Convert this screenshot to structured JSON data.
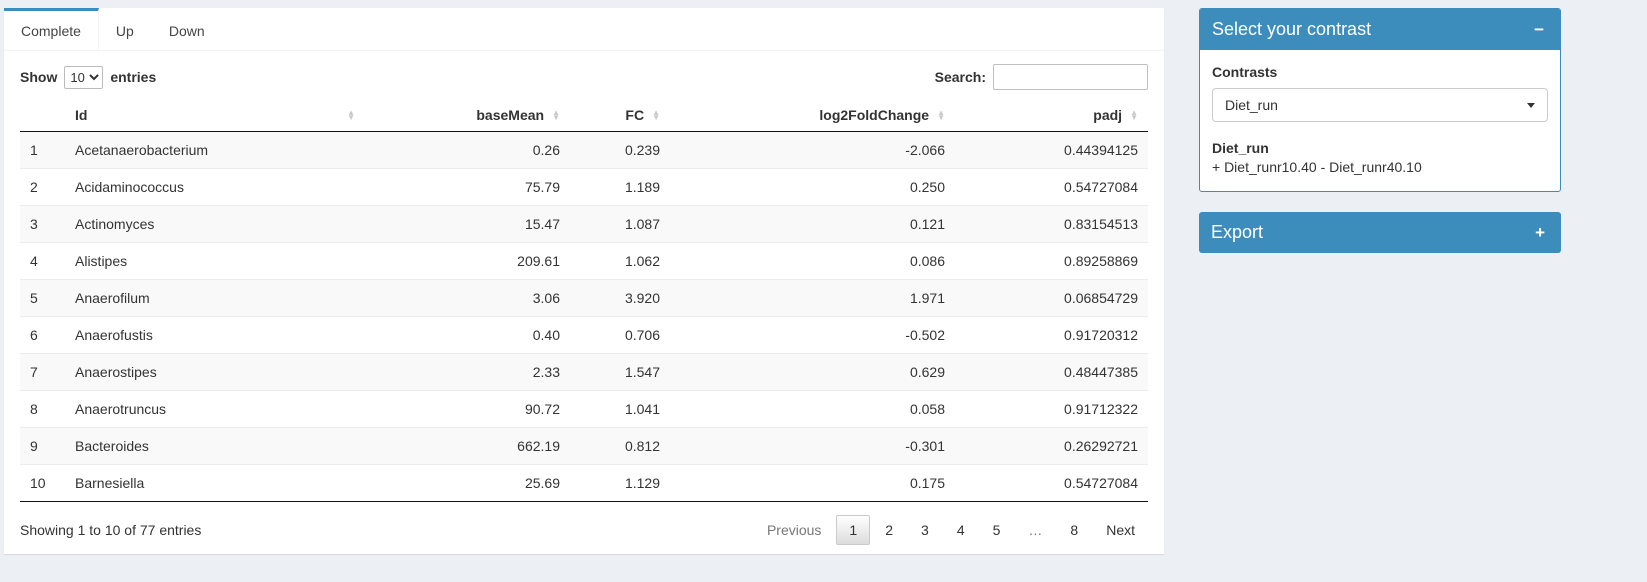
{
  "tabs": [
    {
      "label": "Complete",
      "active": true
    },
    {
      "label": "Up",
      "active": false
    },
    {
      "label": "Down",
      "active": false
    }
  ],
  "controls": {
    "show_label": "Show",
    "page_length": "10",
    "entries_label": "entries",
    "search_label": "Search:",
    "search_value": ""
  },
  "table": {
    "columns": [
      {
        "label": "",
        "sortable": false,
        "align": "left"
      },
      {
        "label": "Id",
        "sortable": true,
        "align": "left"
      },
      {
        "label": "baseMean",
        "sortable": true,
        "align": "right"
      },
      {
        "label": "FC",
        "sortable": true,
        "align": "right"
      },
      {
        "label": "log2FoldChange",
        "sortable": true,
        "align": "right"
      },
      {
        "label": "padj",
        "sortable": true,
        "align": "right"
      }
    ],
    "rows": [
      [
        "1",
        "Acetanaerobacterium",
        "0.26",
        "0.239",
        "-2.066",
        "0.44394125"
      ],
      [
        "2",
        "Acidaminococcus",
        "75.79",
        "1.189",
        "0.250",
        "0.54727084"
      ],
      [
        "3",
        "Actinomyces",
        "15.47",
        "1.087",
        "0.121",
        "0.83154513"
      ],
      [
        "4",
        "Alistipes",
        "209.61",
        "1.062",
        "0.086",
        "0.89258869"
      ],
      [
        "5",
        "Anaerofilum",
        "3.06",
        "3.920",
        "1.971",
        "0.06854729"
      ],
      [
        "6",
        "Anaerofustis",
        "0.40",
        "0.706",
        "-0.502",
        "0.91720312"
      ],
      [
        "7",
        "Anaerostipes",
        "2.33",
        "1.547",
        "0.629",
        "0.48447385"
      ],
      [
        "8",
        "Anaerotruncus",
        "90.72",
        "1.041",
        "0.058",
        "0.91712322"
      ],
      [
        "9",
        "Bacteroides",
        "662.19",
        "0.812",
        "-0.301",
        "0.26292721"
      ],
      [
        "10",
        "Barnesiella",
        "25.69",
        "1.129",
        "0.175",
        "0.54727084"
      ]
    ]
  },
  "footer": {
    "info": "Showing 1 to 10 of 77 entries",
    "pagination": [
      {
        "label": "Previous",
        "disabled": true
      },
      {
        "label": "1",
        "active": true
      },
      {
        "label": "2"
      },
      {
        "label": "3"
      },
      {
        "label": "4"
      },
      {
        "label": "5"
      },
      {
        "label": "…",
        "disabled": true
      },
      {
        "label": "8"
      },
      {
        "label": "Next"
      }
    ]
  },
  "contrast_box": {
    "title": "Select your contrast",
    "collapse_icon": "−",
    "contrasts_label": "Contrasts",
    "selected_contrast": "Diet_run",
    "detail_name": "Diet_run",
    "detail_formula": "+ Diet_runr10.40 - Diet_runr40.10"
  },
  "export_box": {
    "title": "Export",
    "expand_icon": "+"
  },
  "colors": {
    "primary": "#3c8dbc",
    "page_background": "#ecf0f5",
    "stripe": "#f9f9f9"
  }
}
